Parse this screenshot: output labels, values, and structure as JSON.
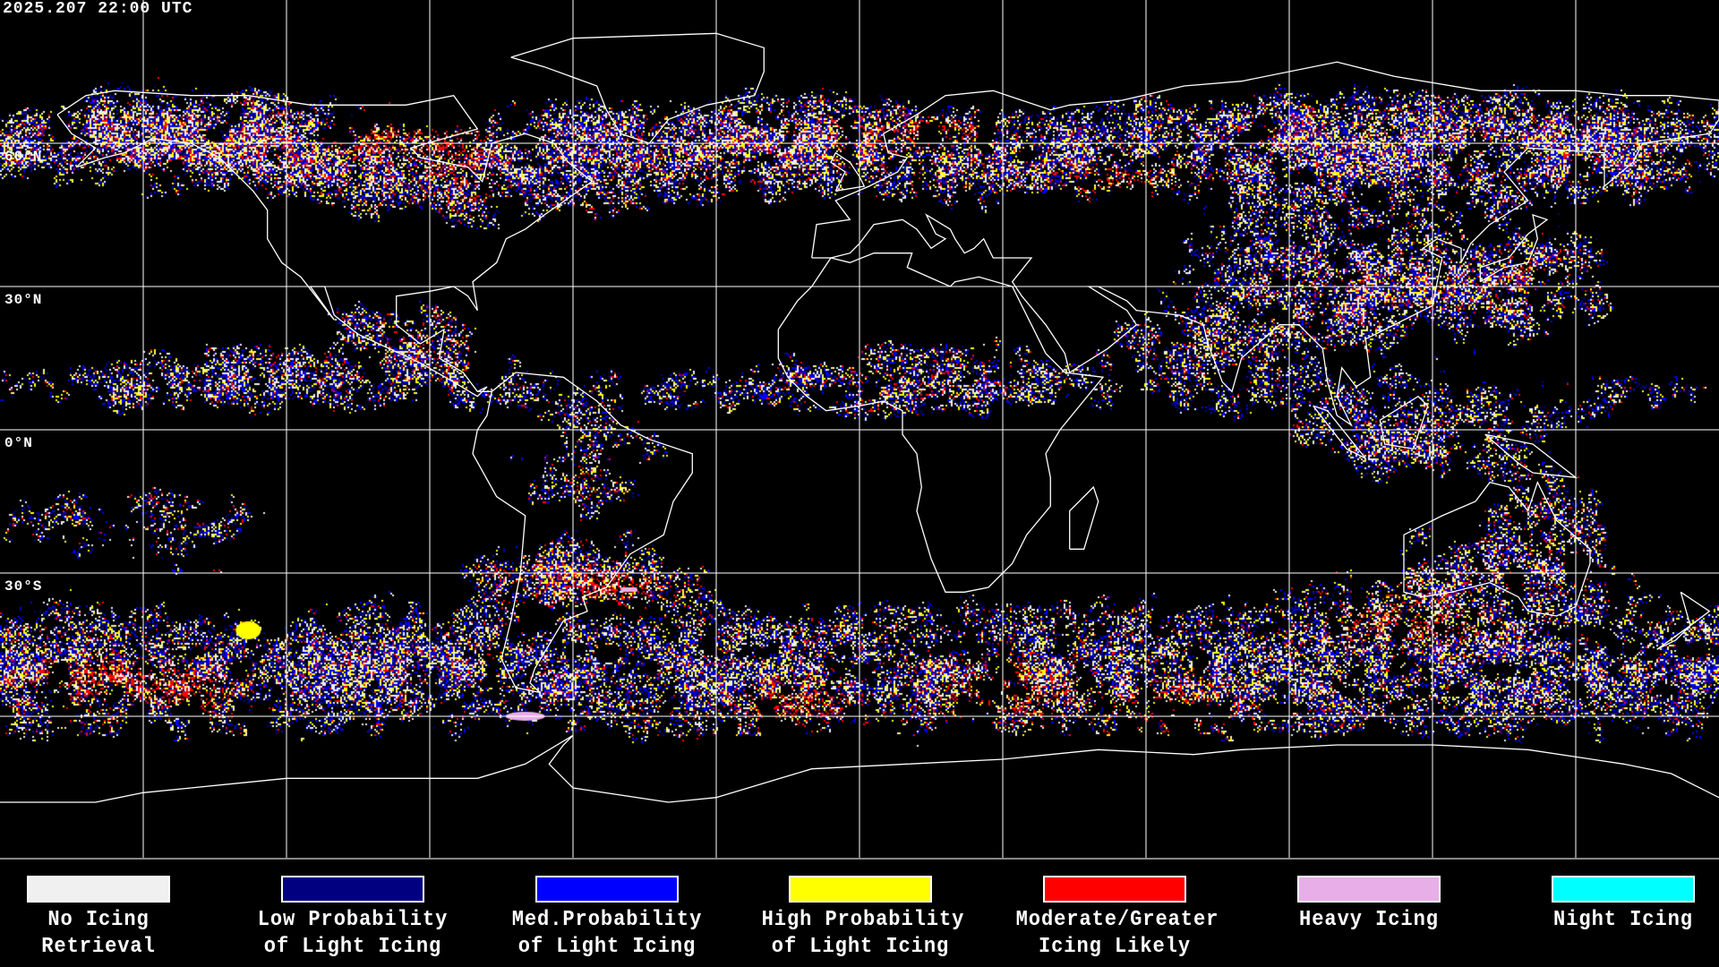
{
  "title": "2025.207 22:00 UTC",
  "lat_labels": [
    "60°N",
    "30°N",
    "0°N",
    "30°S"
  ],
  "legend": [
    {
      "line1": "No Icing",
      "line2": "Retrieval",
      "color": "#f0f0f0"
    },
    {
      "line1": "Low Probability",
      "line2": "of Light Icing",
      "color": "#000080"
    },
    {
      "line1": "Med.Probability",
      "line2": "of Light Icing",
      "color": "#0000ff"
    },
    {
      "line1": "High Probability",
      "line2": "of Light Icing",
      "color": "#ffff00"
    },
    {
      "line1": "Moderate/Greater",
      "line2": "Icing Likely",
      "color": "#ff0000"
    },
    {
      "line1": "Heavy Icing",
      "line2": "",
      "color": "#e8aee8"
    },
    {
      "line1": "Night Icing",
      "line2": "",
      "color": "#00ffff"
    }
  ],
  "colors": {
    "background": "#000000",
    "coastline": "#ffffff",
    "grid": "#ffffff"
  }
}
